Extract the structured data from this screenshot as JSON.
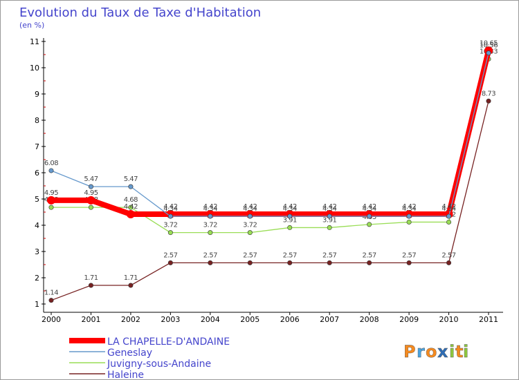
{
  "chart_data": {
    "type": "line",
    "title": "Evolution du Taux de Taxe d'Habitation",
    "subtitle": "(en %)",
    "categories": [
      "2000",
      "2001",
      "2002",
      "2003",
      "2004",
      "2005",
      "2006",
      "2007",
      "2008",
      "2009",
      "2010",
      "2011"
    ],
    "ylim": [
      1,
      11
    ],
    "yticks": [
      1,
      2,
      3,
      4,
      5,
      6,
      7,
      8,
      9,
      10,
      11
    ],
    "series": [
      {
        "name": "LA CHAPELLE-D'ANDAINE",
        "color": "#ff0000",
        "values": [
          4.95,
          4.95,
          4.42,
          4.42,
          4.42,
          4.42,
          4.42,
          4.42,
          4.42,
          4.42,
          4.42,
          10.65
        ],
        "labels": [
          "4.95",
          "4.95",
          "4.42",
          "4.42",
          "4.42",
          "4.42",
          "4.42",
          "4.42",
          "4.42",
          "4.42",
          "4.42",
          "10.65"
        ]
      },
      {
        "name": "Geneslay",
        "color": "#6699cc",
        "values": [
          6.08,
          5.47,
          5.47,
          4.34,
          4.34,
          4.34,
          4.34,
          4.34,
          4.34,
          4.34,
          4.34,
          10.56
        ],
        "labels": [
          "6.08",
          "5.47",
          "5.47",
          "4.34",
          "4.34",
          "4.34",
          "4.34",
          "4.34",
          "4.34",
          "4.34",
          "4.34",
          "10.56"
        ]
      },
      {
        "name": "Juvigny-sous-Andaine",
        "color": "#99dd55",
        "values": [
          4.68,
          4.68,
          4.68,
          3.72,
          3.72,
          3.72,
          3.91,
          3.91,
          4.03,
          4.12,
          4.12,
          10.33
        ],
        "labels": [
          "4.68",
          "4.68",
          "4.68",
          "3.72",
          "3.72",
          "3.72",
          "3.91",
          "3.91",
          "4.03",
          "4.12",
          "4.12",
          "10.33"
        ]
      },
      {
        "name": "Haleine",
        "color": "#772222",
        "values": [
          1.14,
          1.71,
          1.71,
          2.57,
          2.57,
          2.57,
          2.57,
          2.57,
          2.57,
          2.57,
          2.57,
          8.73
        ],
        "labels": [
          "1.14",
          "1.71",
          "1.71",
          "2.57",
          "2.57",
          "2.57",
          "2.57",
          "2.57",
          "2.57",
          "2.57",
          "2.57",
          "8.73"
        ]
      }
    ]
  },
  "brand": {
    "letters": [
      "P",
      "r",
      "o",
      "x",
      "i",
      "t",
      "i"
    ],
    "colors": [
      "#f58a1f",
      "#4aa3df",
      "#f58a1f",
      "#2e6db5",
      "#8cc63f",
      "#f58a1f",
      "#8cc63f"
    ]
  }
}
